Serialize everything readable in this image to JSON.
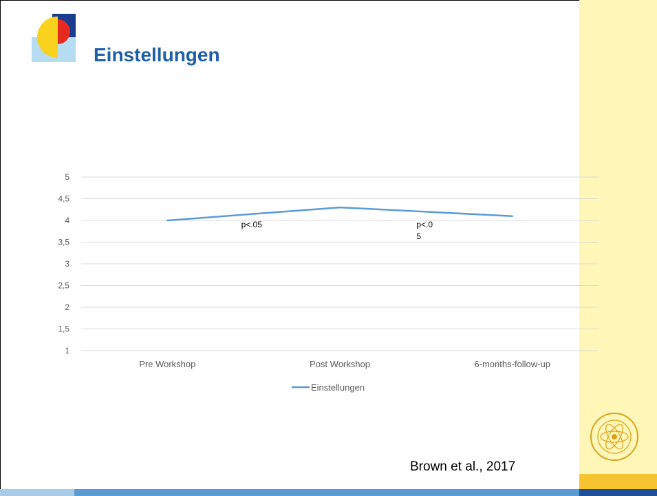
{
  "slide": {
    "title": "Einstellungen",
    "citation": "Brown et al., 2017"
  },
  "colors": {
    "title": "#1f5fa8",
    "series_line": "#5b9bd5",
    "side_band": "#fff6b8",
    "accent_yellow": "#f5c430",
    "bottom_bar": "#5b9bd5"
  },
  "chart_data": {
    "type": "line",
    "title": "",
    "xlabel": "",
    "ylabel": "",
    "categories": [
      "Pre Workshop",
      "Post Workshop",
      "6-months-follow-up"
    ],
    "series": [
      {
        "name": "Einstellungen",
        "values": [
          4.0,
          4.3,
          4.1
        ]
      }
    ],
    "ylim": [
      1,
      5
    ],
    "yticks": [
      1,
      1.5,
      2,
      2.5,
      3,
      3.5,
      4,
      4.5,
      5
    ],
    "ytick_labels": [
      "1",
      "1,5",
      "2",
      "2,5",
      "3",
      "3,5",
      "4",
      "4,5",
      "5"
    ],
    "grid": true,
    "legend": "bottom",
    "annotations": [
      {
        "text": "p<.05",
        "lines": [
          "p<.05"
        ]
      },
      {
        "text": "p<.05",
        "lines": [
          "p<.0",
          "5"
        ]
      }
    ]
  }
}
